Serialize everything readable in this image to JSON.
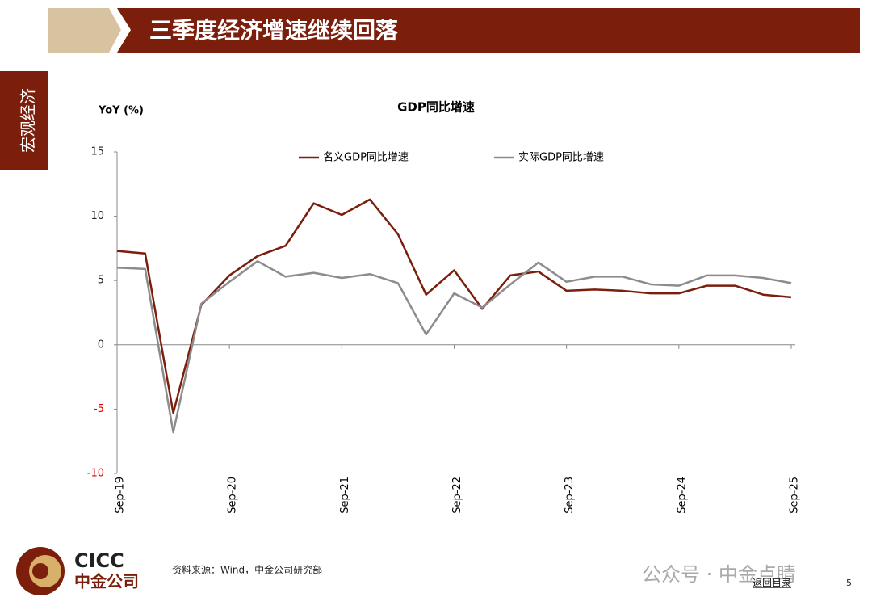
{
  "header": {
    "title": "三季度经济增速继续回落",
    "section": "宏观经济"
  },
  "chart_data": {
    "type": "line",
    "title": "GDP同比增速",
    "y_label": "YoY (%)",
    "categories": [
      "Sep-19",
      null,
      null,
      null,
      "Sep-20",
      null,
      null,
      null,
      "Sep-21",
      null,
      null,
      null,
      "Sep-22",
      null,
      null,
      null,
      "Sep-23",
      null,
      null,
      null,
      "Sep-24",
      null,
      null,
      null,
      "Sep-25"
    ],
    "series": [
      {
        "name": "名义GDP同比增速",
        "color": "#7b1e0c",
        "values": [
          7.3,
          7.1,
          -5.3,
          3.1,
          5.4,
          6.9,
          7.7,
          11.0,
          10.1,
          11.3,
          8.6,
          3.9,
          5.8,
          2.8,
          5.4,
          5.7,
          4.2,
          4.3,
          4.2,
          4.0,
          4.0,
          4.6,
          4.6,
          3.9,
          3.7
        ]
      },
      {
        "name": "实际GDP同比增速",
        "color": "#8c8c8c",
        "values": [
          6.0,
          5.9,
          -6.8,
          3.2,
          4.9,
          6.5,
          5.3,
          5.6,
          5.2,
          5.5,
          4.8,
          0.8,
          4.0,
          2.9,
          4.7,
          6.4,
          4.9,
          5.3,
          5.3,
          4.7,
          4.6,
          5.4,
          5.4,
          5.2,
          4.8
        ]
      }
    ],
    "ylim": [
      -10,
      15
    ],
    "yticks": [
      -10,
      -5,
      0,
      5,
      10,
      15
    ],
    "negative_tick_color": "#e00000",
    "legend": "top"
  },
  "footer": {
    "logo_en": "CICC",
    "logo_cn": "中金公司",
    "source": "资料来源：Wind，中金公司研究部",
    "watermark": "公众号 · 中金点睛",
    "back": "返回目录",
    "page": "5"
  }
}
